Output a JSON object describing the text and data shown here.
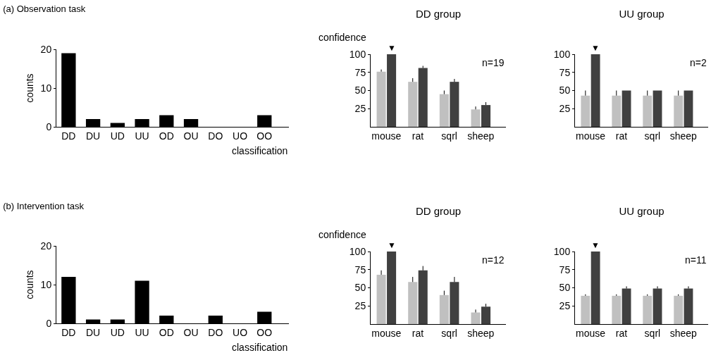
{
  "chart_data": [
    {
      "type": "bar",
      "title": "(a) Observation task",
      "xlabel": "classification",
      "ylabel": "counts",
      "categories": [
        "DD",
        "DU",
        "UD",
        "UU",
        "OD",
        "OU",
        "DO",
        "UO",
        "OO"
      ],
      "values": [
        19,
        2,
        1,
        2,
        3,
        2,
        0,
        0,
        3
      ],
      "color": "#000000",
      "ylim": [
        0,
        20
      ],
      "yticks": [
        0,
        10,
        20
      ]
    },
    {
      "type": "bar",
      "title": "DD group",
      "ylabel": "confidence",
      "categories": [
        "mouse",
        "rat",
        "sqrl",
        "sheep"
      ],
      "series": [
        {
          "color": "#c0c0c0",
          "values": [
            76,
            62,
            45,
            24
          ],
          "errors": [
            [
              76,
              79
            ],
            [
              62,
              67
            ],
            [
              45,
              50
            ],
            [
              24,
              28
            ]
          ]
        },
        {
          "color": "#404040",
          "values": [
            100,
            81,
            62,
            30
          ],
          "errors": [
            null,
            [
              81,
              84
            ],
            [
              62,
              66
            ],
            [
              30,
              34
            ]
          ]
        }
      ],
      "ylim": [
        0,
        100
      ],
      "yticks": [
        25,
        50,
        75,
        100
      ],
      "annotations": [
        {
          "text": "▼",
          "x": "mouse",
          "y": 100
        },
        "n=19"
      ]
    },
    {
      "type": "bar",
      "title": "UU group",
      "categories": [
        "mouse",
        "rat",
        "sqrl",
        "sheep"
      ],
      "series": [
        {
          "color": "#c0c0c0",
          "values": [
            43,
            43,
            43,
            43
          ],
          "errors": [
            [
              43,
              50
            ],
            [
              43,
              50
            ],
            [
              43,
              50
            ],
            [
              43,
              50
            ]
          ]
        },
        {
          "color": "#404040",
          "values": [
            100,
            50,
            50,
            50
          ],
          "errors": [
            null,
            null,
            null,
            null
          ]
        }
      ],
      "ylim": [
        0,
        100
      ],
      "yticks": [
        25,
        50,
        75,
        100
      ],
      "annotations": [
        {
          "text": "▼",
          "x": "mouse",
          "y": 100
        },
        "n=2"
      ]
    },
    {
      "type": "bar",
      "title": "(b) Intervention task",
      "xlabel": "classification",
      "ylabel": "counts",
      "categories": [
        "DD",
        "DU",
        "UD",
        "UU",
        "OD",
        "OU",
        "DO",
        "UO",
        "OO"
      ],
      "values": [
        12,
        1,
        1,
        11,
        2,
        0,
        2,
        0,
        3
      ],
      "color": "#000000",
      "ylim": [
        0,
        20
      ],
      "yticks": [
        0,
        10,
        20
      ]
    },
    {
      "type": "bar",
      "title": "DD group",
      "ylabel": "confidence",
      "categories": [
        "mouse",
        "rat",
        "sqrl",
        "sheep"
      ],
      "series": [
        {
          "color": "#c0c0c0",
          "values": [
            68,
            58,
            40,
            16
          ],
          "errors": [
            [
              68,
              74
            ],
            [
              58,
              65
            ],
            [
              40,
              46
            ],
            [
              16,
              20
            ]
          ]
        },
        {
          "color": "#404040",
          "values": [
            100,
            74,
            58,
            24
          ],
          "errors": [
            null,
            [
              74,
              80
            ],
            [
              58,
              65
            ],
            [
              24,
              28
            ]
          ]
        }
      ],
      "ylim": [
        0,
        100
      ],
      "yticks": [
        25,
        50,
        75,
        100
      ],
      "annotations": [
        {
          "text": "▼",
          "x": "mouse",
          "y": 100
        },
        "n=12"
      ]
    },
    {
      "type": "bar",
      "title": "UU group",
      "categories": [
        "mouse",
        "rat",
        "sqrl",
        "sheep"
      ],
      "series": [
        {
          "color": "#c0c0c0",
          "values": [
            39,
            39,
            39,
            39
          ],
          "errors": [
            [
              39,
              41
            ],
            [
              39,
              41
            ],
            [
              39,
              41
            ],
            [
              39,
              41
            ]
          ]
        },
        {
          "color": "#404040",
          "values": [
            100,
            49,
            49,
            49
          ],
          "errors": [
            null,
            [
              49,
              52
            ],
            [
              49,
              52
            ],
            [
              49,
              52
            ]
          ]
        }
      ],
      "ylim": [
        0,
        100
      ],
      "yticks": [
        25,
        50,
        75,
        100
      ],
      "annotations": [
        {
          "text": "▼",
          "x": "mouse",
          "y": 100
        },
        "n=11"
      ]
    }
  ]
}
